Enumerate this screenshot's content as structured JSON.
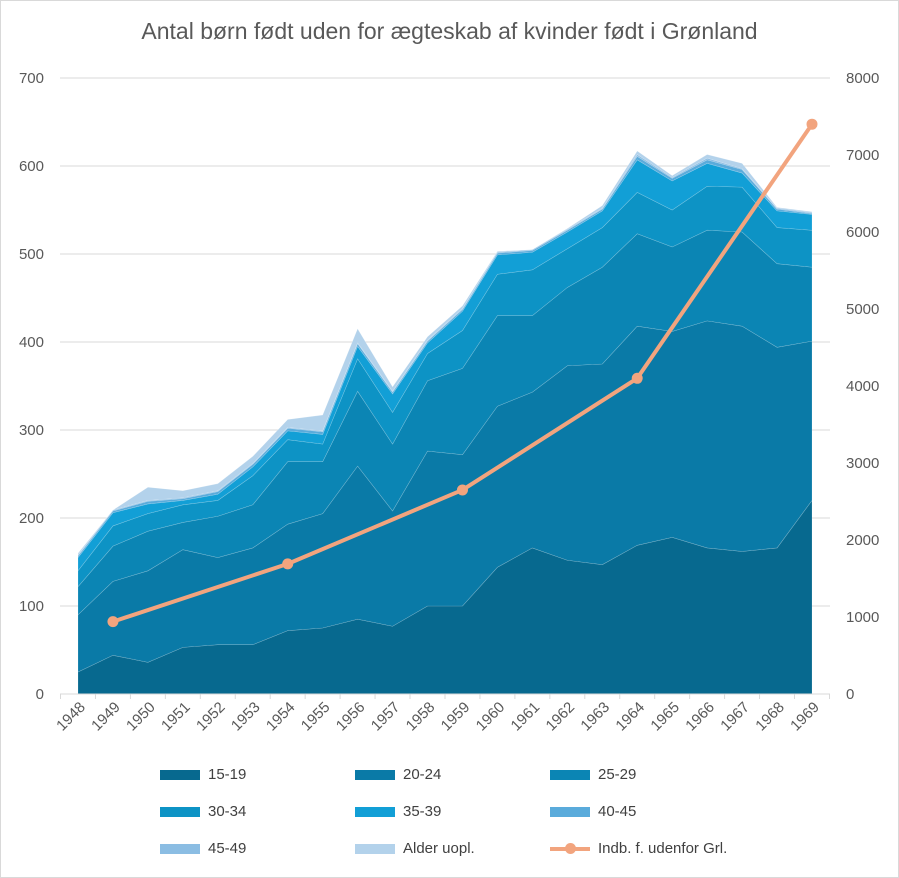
{
  "chart_data": {
    "type": "area",
    "subtype": "stacked area with line on secondary axis",
    "title": "Antal børn født uden for ægteskab af kvinder født i Grønland",
    "categories": [
      "1948",
      "1949",
      "1950",
      "1951",
      "1952",
      "1953",
      "1954",
      "1955",
      "1956",
      "1957",
      "1958",
      "1959",
      "1960",
      "1961",
      "1962",
      "1963",
      "1964",
      "1965",
      "1966",
      "1967",
      "1968",
      "1969"
    ],
    "y_left": {
      "min": 0,
      "max": 700,
      "ticks": [
        0,
        100,
        200,
        300,
        400,
        500,
        600,
        700
      ]
    },
    "y_right": {
      "min": 0,
      "max": 8000,
      "ticks": [
        0,
        1000,
        2000,
        3000,
        4000,
        5000,
        6000,
        7000,
        8000
      ]
    },
    "grid": true,
    "legend_position": "bottom",
    "series": [
      {
        "name": "15-19",
        "color": "#07698f",
        "values": [
          25,
          44,
          36,
          53,
          56,
          56,
          72,
          75,
          85,
          77,
          100,
          100,
          144,
          166,
          152,
          147,
          169,
          178,
          166,
          162,
          166,
          220
        ]
      },
      {
        "name": "20-24",
        "color": "#0a7aa7",
        "values": [
          65,
          84,
          104,
          111,
          99,
          110,
          121,
          130,
          174,
          131,
          176,
          172,
          183,
          177,
          221,
          228,
          249,
          234,
          258,
          256,
          228,
          181
        ]
      },
      {
        "name": "25-29",
        "color": "#0b85b4",
        "values": [
          32,
          40,
          45,
          31,
          47,
          49,
          71,
          59,
          85,
          76,
          80,
          98,
          103,
          87,
          89,
          110,
          105,
          96,
          103,
          107,
          95,
          84
        ]
      },
      {
        "name": "30-34",
        "color": "#0d93c5",
        "values": [
          18,
          23,
          20,
          20,
          18,
          33,
          25,
          20,
          37,
          36,
          31,
          43,
          47,
          52,
          44,
          45,
          47,
          42,
          50,
          51,
          41,
          42
        ]
      },
      {
        "name": "35-39",
        "color": "#129fd6",
        "values": [
          15,
          15,
          11,
          5,
          7,
          10,
          10,
          11,
          14,
          21,
          12,
          22,
          22,
          20,
          19,
          19,
          37,
          33,
          26,
          16,
          19,
          18
        ]
      },
      {
        "name": "40-45",
        "color": "#5aabdb",
        "values": [
          2,
          2,
          3,
          2,
          3,
          3,
          3,
          3,
          3,
          2,
          2,
          2,
          2,
          2,
          2,
          2,
          4,
          3,
          4,
          4,
          2,
          1
        ]
      },
      {
        "name": "45-49",
        "color": "#8bbde3",
        "values": [
          1,
          1,
          1,
          1,
          1,
          1,
          1,
          1,
          1,
          1,
          1,
          1,
          1,
          1,
          1,
          1,
          2,
          1,
          2,
          1,
          1,
          1
        ]
      },
      {
        "name": "Alder uopl.",
        "color": "#b3d2eb",
        "values": [
          2,
          0,
          15,
          8,
          8,
          8,
          9,
          18,
          16,
          5,
          4,
          3,
          1,
          0,
          1,
          3,
          4,
          2,
          4,
          6,
          1,
          1
        ]
      }
    ],
    "line_series": {
      "name": "Indb. f. udenfor Grl.",
      "color": "#f2a47e",
      "axis": "right",
      "values": [
        null,
        940,
        null,
        null,
        null,
        null,
        1690,
        null,
        null,
        null,
        null,
        2650,
        null,
        null,
        null,
        null,
        4100,
        null,
        null,
        null,
        null,
        7400
      ]
    }
  }
}
